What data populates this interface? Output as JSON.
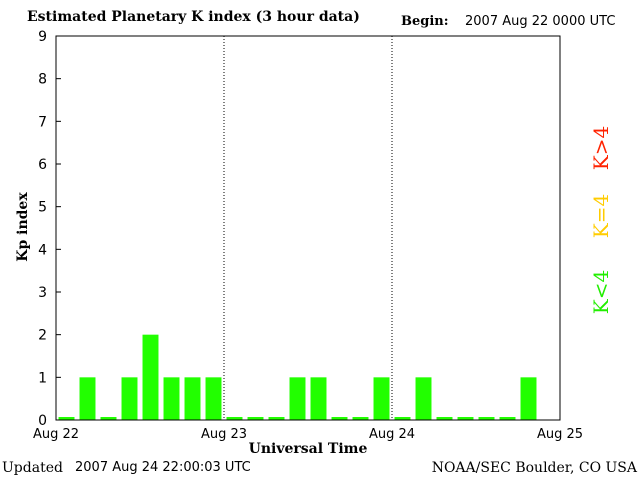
{
  "header": {
    "title": "Estimated Planetary K index (3 hour data)",
    "begin_label": "Begin:",
    "begin_value": "2007 Aug 22 0000 UTC"
  },
  "footer": {
    "updated_label": "Updated",
    "updated_value": "2007 Aug 24 22:00:03 UTC",
    "credit": "NOAA/SEC Boulder, CO USA"
  },
  "legend": {
    "high": {
      "label": "K>4",
      "color": "#ff2200"
    },
    "equal": {
      "label": "K=4",
      "color": "#ffcc00"
    },
    "low": {
      "label": "K<4",
      "color": "#22ee00"
    }
  },
  "chart_data": {
    "type": "bar",
    "title": "Estimated Planetary K index (3 hour data)",
    "xlabel": "Universal Time",
    "ylabel": "Kp index",
    "ylim": [
      0,
      9
    ],
    "yticks": [
      0,
      1,
      2,
      3,
      4,
      5,
      6,
      7,
      8,
      9
    ],
    "x_tick_labels": [
      "Aug 22",
      "Aug 23",
      "Aug 24",
      "Aug 25"
    ],
    "bar_interval_hours": 3,
    "values": [
      0,
      1,
      0,
      1,
      2,
      1,
      1,
      1,
      0,
      0,
      0,
      1,
      1,
      0,
      0,
      1,
      0,
      1,
      0,
      0,
      0,
      0,
      1
    ],
    "bar_color": "#22ff00",
    "day_separators": "dotted",
    "legend_position": "right"
  }
}
